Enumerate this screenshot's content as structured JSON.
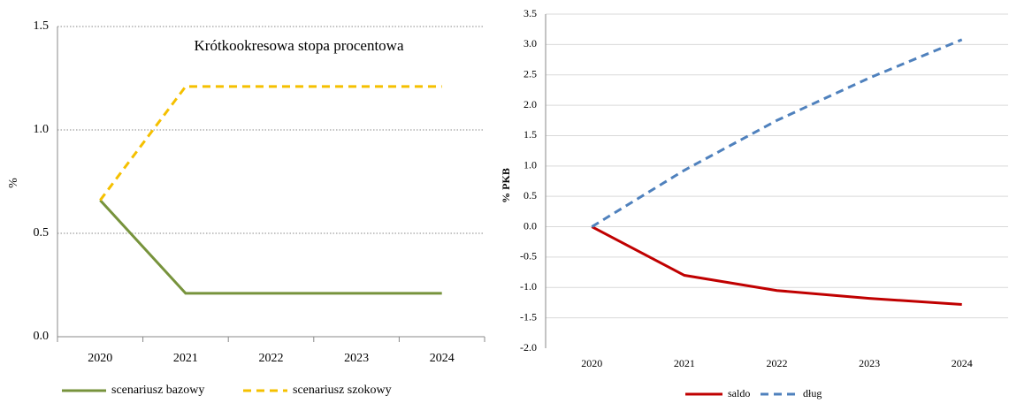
{
  "chart_data": [
    {
      "type": "line",
      "title": "Krótkookresowa stopa procentowa",
      "y_label": "%",
      "categories": [
        "2020",
        "2021",
        "2022",
        "2023",
        "2024"
      ],
      "series": [
        {
          "name": "scenariusz bazowy",
          "color": "#77933c",
          "dash": false,
          "values": [
            0.66,
            0.21,
            0.21,
            0.21,
            0.21
          ]
        },
        {
          "name": "scenariusz szokowy",
          "color": "#f5c000",
          "dash": true,
          "values": [
            0.66,
            1.21,
            1.21,
            1.21,
            1.21
          ]
        }
      ],
      "ylim": [
        0,
        1.5
      ],
      "yticks": [
        {
          "value": 0,
          "label": "0.0"
        },
        0.5,
        {
          "value": 1,
          "label": "1.0"
        },
        1.5
      ],
      "grid": true,
      "legend": "bottom"
    },
    {
      "type": "line",
      "y_label": "% PKB",
      "categories": [
        "2020",
        "2021",
        "2022",
        "2023",
        "2024"
      ],
      "series": [
        {
          "name": "saldo",
          "color": "#c00000",
          "dash": false,
          "values": [
            0,
            -0.8,
            -1.05,
            -1.18,
            -1.28
          ]
        },
        {
          "name": "dług",
          "color": "#4f81bd",
          "dash": true,
          "values": [
            0,
            0.93,
            1.75,
            2.45,
            3.08
          ]
        }
      ],
      "ylim": [
        -2,
        3.5
      ],
      "yticks": [
        {
          "value": -2,
          "label": "-2.0"
        },
        -1.5,
        {
          "value": -1,
          "label": "-1.0"
        },
        -0.5,
        {
          "value": 0,
          "label": "0.0"
        },
        0.5,
        {
          "value": 1,
          "label": "1.0"
        },
        1.5,
        {
          "value": 2,
          "label": "2.0"
        },
        2.5,
        {
          "value": 3,
          "label": "3.0"
        },
        3.5
      ],
      "grid": true,
      "legend": "bottom"
    }
  ]
}
